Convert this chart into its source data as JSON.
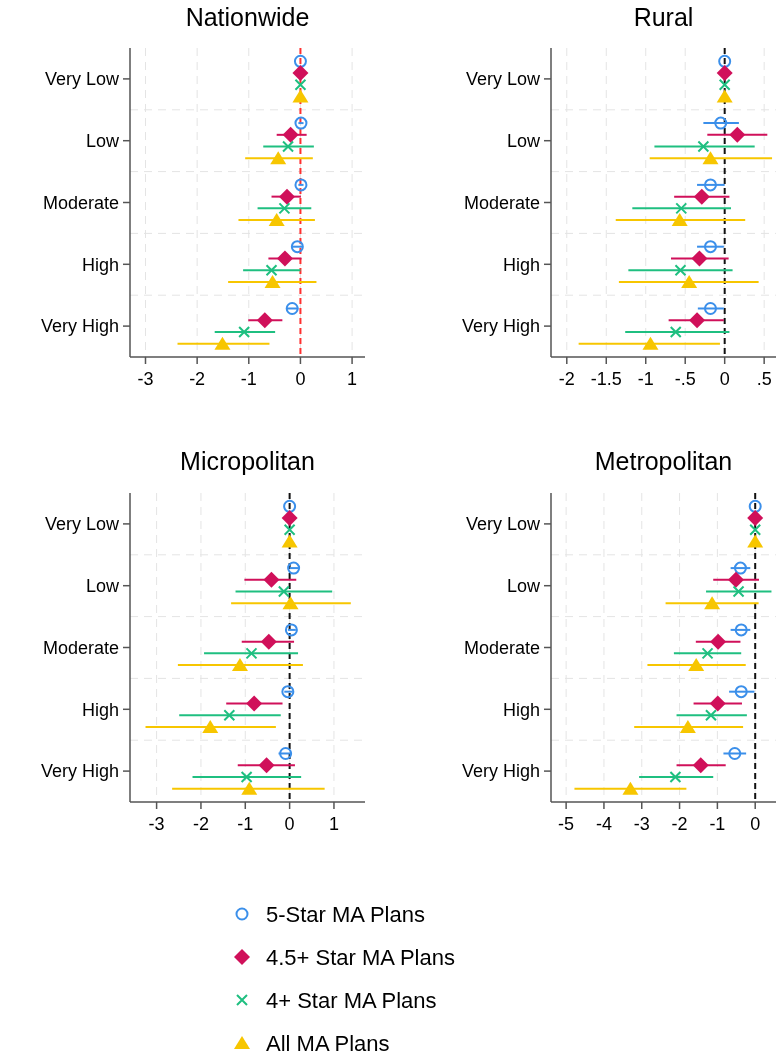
{
  "chart_data": [
    {
      "type": "scatter",
      "orientation": "horizontal",
      "title": "Nationwide",
      "categories": [
        "Very Low",
        "Low",
        "Moderate",
        "High",
        "Very High"
      ],
      "xlim": [
        -3.3,
        1.25
      ],
      "xticks": [
        -3,
        -2,
        -1,
        0,
        1
      ],
      "grid": true,
      "legend": "bottom",
      "ref_lines": [
        {
          "axis": "x",
          "value": 0,
          "color": "#ff3030",
          "line_style": "dashed"
        }
      ],
      "series": [
        {
          "name": "5-Star MA Plans",
          "color": "#3b8fea",
          "marker": "circle",
          "values": [
            0,
            0.01,
            0.01,
            -0.06,
            -0.16
          ],
          "errors": [
            null,
            [
              -0.04,
              0.06
            ],
            [
              -0.04,
              0.06
            ],
            [
              -0.16,
              0.03
            ],
            [
              -0.27,
              -0.04
            ]
          ]
        },
        {
          "name": "4.5+ Star MA Plans",
          "color": "#d0105a",
          "marker": "diamond",
          "values": [
            0,
            -0.19,
            -0.26,
            -0.3,
            -0.69
          ],
          "errors": [
            null,
            [
              -0.46,
              0.12
            ],
            [
              -0.56,
              0.01
            ],
            [
              -0.62,
              0.02
            ],
            [
              -1.01,
              -0.35
            ]
          ]
        },
        {
          "name": "4+ Star MA Plans",
          "color": "#1fbf80",
          "marker": "cross",
          "values": [
            0,
            -0.24,
            -0.31,
            -0.56,
            -1.09
          ],
          "errors": [
            null,
            [
              -0.72,
              0.26
            ],
            [
              -0.83,
              0.21
            ],
            [
              -1.11,
              0
            ],
            [
              -1.66,
              -0.49
            ]
          ]
        },
        {
          "name": "All MA Plans",
          "color": "#f7c600",
          "marker": "triangle",
          "values": [
            0,
            -0.43,
            -0.46,
            -0.54,
            -1.51
          ],
          "errors": [
            null,
            [
              -1.07,
              0.24
            ],
            [
              -1.2,
              0.28
            ],
            [
              -1.4,
              0.31
            ],
            [
              -2.38,
              -0.6
            ]
          ]
        }
      ]
    },
    {
      "type": "scatter",
      "orientation": "horizontal",
      "title": "Rural",
      "categories": [
        "Very Low",
        "Low",
        "Moderate",
        "High",
        "Very High"
      ],
      "xlim": [
        -2.2,
        0.65
      ],
      "xticks": [
        -2,
        {
          "value": -1.5,
          "label": "-1.5"
        },
        -1,
        {
          "value": -0.5,
          "label": "-.5"
        },
        0,
        {
          "value": 0.5,
          "label": ".5"
        }
      ],
      "grid": true,
      "ref_lines": [
        {
          "axis": "x",
          "value": 0,
          "color": "#111111",
          "line_style": "dashed"
        }
      ],
      "series": [
        {
          "color": "#3b8fea",
          "marker": "circle",
          "values": [
            0,
            -0.05,
            -0.18,
            -0.18,
            -0.18
          ],
          "errors": [
            null,
            [
              -0.27,
              0.18
            ],
            [
              -0.35,
              0
            ],
            [
              -0.35,
              -0.01
            ],
            [
              -0.34,
              -0.01
            ]
          ]
        },
        {
          "color": "#d0105a",
          "marker": "diamond",
          "values": [
            0,
            0.16,
            -0.29,
            -0.32,
            -0.35
          ],
          "errors": [
            null,
            [
              -0.22,
              0.54
            ],
            [
              -0.64,
              0.06
            ],
            [
              -0.68,
              0.05
            ],
            [
              -0.71,
              -0.01
            ]
          ]
        },
        {
          "color": "#1fbf80",
          "marker": "cross",
          "values": [
            0,
            -0.27,
            -0.55,
            -0.56,
            -0.62
          ],
          "errors": [
            null,
            [
              -0.89,
              0.38
            ],
            [
              -1.17,
              0.08
            ],
            [
              -1.22,
              0.1
            ],
            [
              -1.26,
              0.06
            ]
          ]
        },
        {
          "color": "#f7c600",
          "marker": "triangle",
          "values": [
            0,
            -0.18,
            -0.57,
            -0.45,
            -0.94
          ],
          "errors": [
            null,
            [
              -0.95,
              0.6
            ],
            [
              -1.38,
              0.26
            ],
            [
              -1.34,
              0.43
            ],
            [
              -1.85,
              -0.06
            ]
          ]
        }
      ]
    },
    {
      "type": "scatter",
      "orientation": "horizontal",
      "title": "Micropolitan",
      "categories": [
        "Very Low",
        "Low",
        "Moderate",
        "High",
        "Very High"
      ],
      "xlim": [
        -3.6,
        1.7
      ],
      "xticks": [
        -3,
        -2,
        -1,
        0,
        1
      ],
      "grid": true,
      "ref_lines": [
        {
          "axis": "x",
          "value": 0,
          "color": "#111111",
          "line_style": "dashed"
        }
      ],
      "series": [
        {
          "color": "#3b8fea",
          "marker": "circle",
          "values": [
            0,
            0.09,
            0.04,
            -0.04,
            -0.09
          ],
          "errors": [
            null,
            [
              0,
              0.2
            ],
            [
              -0.04,
              0.14
            ],
            [
              -0.12,
              0.07
            ],
            [
              -0.25,
              0.05
            ]
          ]
        },
        {
          "color": "#d0105a",
          "marker": "diamond",
          "values": [
            0,
            -0.41,
            -0.47,
            -0.8,
            -0.52
          ],
          "errors": [
            null,
            [
              -1.02,
              0.15
            ],
            [
              -1.08,
              0.1
            ],
            [
              -1.43,
              -0.16
            ],
            [
              -1.17,
              0.12
            ]
          ]
        },
        {
          "color": "#1fbf80",
          "marker": "cross",
          "values": [
            0,
            -0.13,
            -0.86,
            -1.36,
            -0.97
          ],
          "errors": [
            null,
            [
              -1.22,
              0.96
            ],
            [
              -1.93,
              0.19
            ],
            [
              -2.49,
              -0.2
            ],
            [
              -2.19,
              0.26
            ]
          ]
        },
        {
          "color": "#f7c600",
          "marker": "triangle",
          "values": [
            0,
            0.02,
            -1.12,
            -1.79,
            -0.91
          ],
          "errors": [
            null,
            [
              -1.32,
              1.38
            ],
            [
              -2.52,
              0.3
            ],
            [
              -3.25,
              -0.31
            ],
            [
              -2.65,
              0.79
            ]
          ]
        }
      ]
    },
    {
      "type": "scatter",
      "orientation": "horizontal",
      "title": "Metropolitan",
      "categories": [
        "Very Low",
        "Low",
        "Moderate",
        "High",
        "Very High"
      ],
      "xlim": [
        -5.4,
        0.55
      ],
      "xticks": [
        -5,
        -4,
        -3,
        -2,
        -1,
        0
      ],
      "grid": true,
      "ref_lines": [
        {
          "axis": "x",
          "value": 0,
          "color": "#111111",
          "line_style": "dashed"
        }
      ],
      "series": [
        {
          "color": "#3b8fea",
          "marker": "circle",
          "values": [
            0,
            -0.39,
            -0.37,
            -0.37,
            -0.54
          ],
          "errors": [
            null,
            [
              -0.65,
              -0.13
            ],
            [
              -0.65,
              -0.13
            ],
            [
              -0.69,
              -0.02
            ],
            [
              -0.84,
              -0.24
            ]
          ]
        },
        {
          "color": "#d0105a",
          "marker": "diamond",
          "values": [
            0,
            -0.51,
            -0.98,
            -0.99,
            -1.44
          ],
          "errors": [
            null,
            [
              -1.11,
              0.1
            ],
            [
              -1.57,
              -0.39
            ],
            [
              -1.63,
              -0.35
            ],
            [
              -2.08,
              -0.78
            ]
          ]
        },
        {
          "color": "#1fbf80",
          "marker": "cross",
          "values": [
            0,
            -0.44,
            -1.26,
            -1.17,
            -2.11
          ],
          "errors": [
            null,
            [
              -1.3,
              0.43
            ],
            [
              -2.15,
              -0.37
            ],
            [
              -2.08,
              -0.22
            ],
            [
              -3.07,
              -1.11
            ]
          ]
        },
        {
          "color": "#f7c600",
          "marker": "triangle",
          "values": [
            0,
            -1.14,
            -1.56,
            -1.78,
            -3.3
          ],
          "errors": [
            null,
            [
              -2.37,
              0.09
            ],
            [
              -2.85,
              -0.25
            ],
            [
              -3.2,
              -0.32
            ],
            [
              -4.78,
              -1.82
            ]
          ]
        }
      ]
    }
  ]
}
